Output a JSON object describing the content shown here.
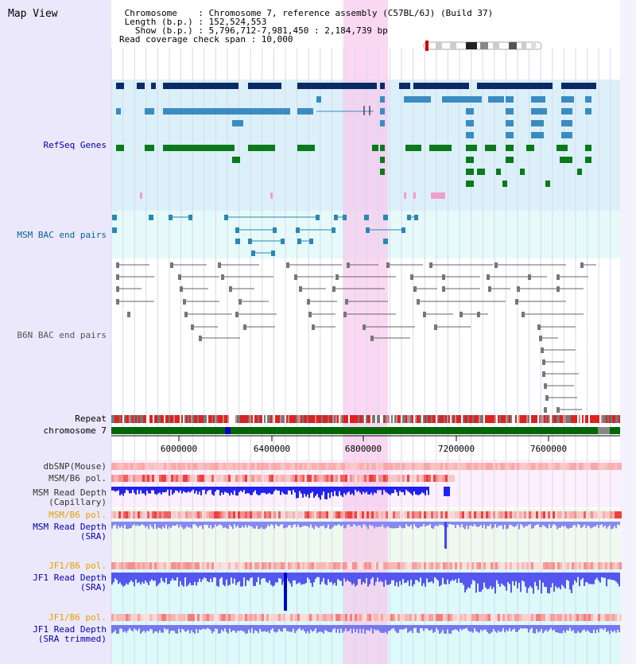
{
  "view_title": "Map View",
  "info": {
    "line1": " Chromosome    : Chromosome 7, reference assembly (C57BL/6J) (Build 37)",
    "line2": " Length (b.p.) : 152,524,553",
    "line3": "   Show (b.p.) : 5,796,712-7,981,450 : 2,184,739 bp",
    "line4": "Read coverage check span : 10,000"
  },
  "tracks": {
    "refseq": {
      "label": "RefSeq Genes",
      "color": "#0000aa"
    },
    "msm_bac": {
      "label": "MSM BAC end pairs",
      "color": "#006699"
    },
    "b6n_bac": {
      "label": "B6N BAC end pairs",
      "color": "#555555"
    },
    "repeat": {
      "label": "Repeat",
      "color": "#000000"
    },
    "chrom": {
      "label": "chromosome 7",
      "color": "#000000"
    },
    "dbsnp": {
      "label": "dbSNP(Mouse)",
      "color": "#333333"
    },
    "msm_pol": {
      "label": "MSM/B6 pol.",
      "color": "#333333"
    },
    "msm_depth_cap": {
      "label1": "MSM Read Depth",
      "label2": "(Capillary)",
      "color": "#333333"
    },
    "msm_pol2": {
      "label": "MSM/B6 pol.",
      "color": "#e0a000"
    },
    "msm_depth_sra": {
      "label1": "MSM Read Depth",
      "label2": "(SRA)",
      "color": "#0000aa"
    },
    "jf1_pol": {
      "label": "JF1/B6 pol.",
      "color": "#e0a000"
    },
    "jf1_depth_sra": {
      "label1": "JF1 Read Depth",
      "label2": "(SRA)",
      "color": "#0000aa"
    },
    "jf1_pol2": {
      "label": "JF1/B6 pol.",
      "color": "#e0a000"
    },
    "jf1_depth_trim": {
      "label1": "JF1 Read Depth",
      "label2": "(SRA trimmed)",
      "color": "#0000aa"
    }
  },
  "scale": {
    "ticks": [
      "6000000",
      "6400000",
      "6800000",
      "7200000",
      "7600000"
    ]
  },
  "colors": {
    "highlight": "#f8c8ec",
    "gene_dark": "#0a2a66",
    "gene_mid": "#3a8cc0",
    "gene_green": "#0a7a1a",
    "gene_pink": "#f0a0c8",
    "bac_msm": "#2a88b0",
    "bac_b6n": "#777777",
    "chrom_green": "#006600",
    "chrom_blue": "#0000cc",
    "repeat_red": "#dd2222",
    "depth_blue": "#2222ee",
    "depth_light": "#8888f0"
  }
}
